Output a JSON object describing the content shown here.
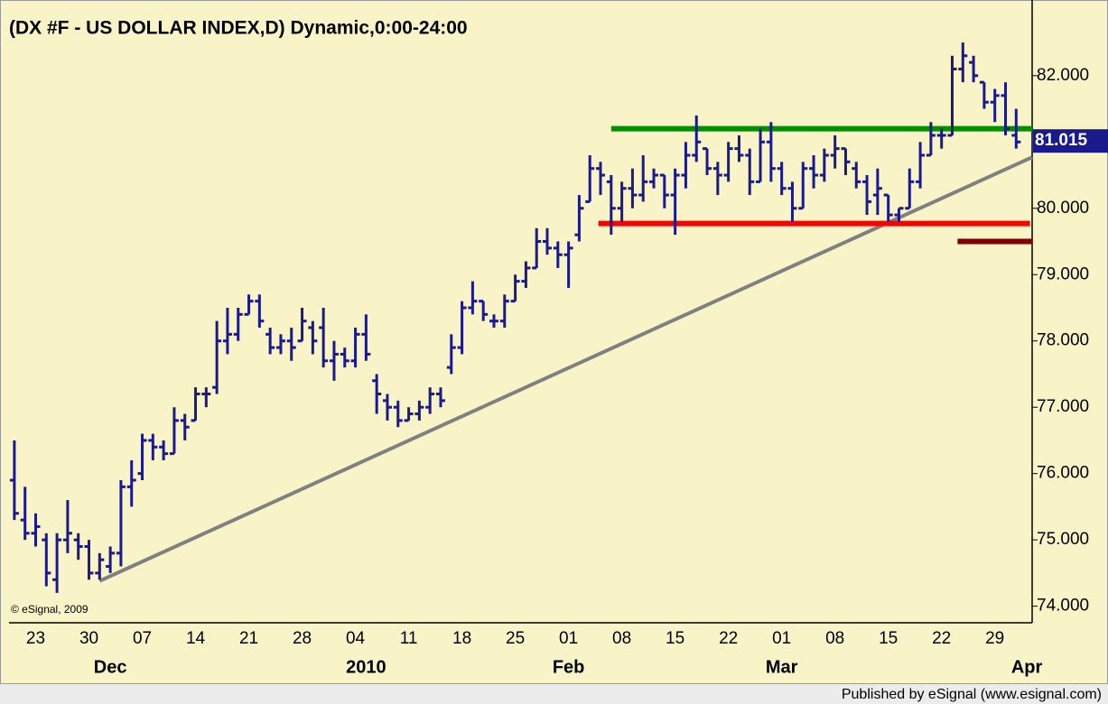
{
  "chart_data": {
    "type": "ohlc",
    "title": "(DX #F - US DOLLAR INDEX,D) Dynamic,0:00-24:00",
    "copyright": "© eSignal, 2009",
    "footer": "Published by eSignal (www.esignal.com)",
    "color": "#1a1a8c",
    "categories": [
      null,
      null,
      "23",
      null,
      null,
      null,
      null,
      "30",
      null,
      null,
      null,
      null,
      "07",
      null,
      null,
      null,
      null,
      "14",
      null,
      null,
      null,
      null,
      "21",
      null,
      null,
      null,
      null,
      "28",
      null,
      null,
      null,
      null,
      "04",
      null,
      null,
      null,
      null,
      "11",
      null,
      null,
      null,
      null,
      "18",
      null,
      null,
      null,
      null,
      "25",
      null,
      null,
      null,
      null,
      "01",
      null,
      null,
      null,
      null,
      "08",
      null,
      null,
      null,
      null,
      "15",
      null,
      null,
      null,
      null,
      "22",
      null,
      null,
      null,
      null,
      "01",
      null,
      null,
      null,
      null,
      "08",
      null,
      null,
      null,
      null,
      "15",
      null,
      null,
      null,
      null,
      "22",
      null,
      null,
      null,
      null,
      "29",
      null,
      null,
      null
    ],
    "month_categories": [
      null,
      null,
      null,
      null,
      null,
      null,
      null,
      null,
      null,
      "Dec",
      null,
      null,
      null,
      null,
      null,
      null,
      null,
      null,
      null,
      null,
      null,
      null,
      null,
      null,
      null,
      null,
      null,
      null,
      null,
      null,
      null,
      null,
      null,
      "2010",
      null,
      null,
      null,
      null,
      null,
      null,
      null,
      null,
      null,
      null,
      null,
      null,
      null,
      null,
      null,
      null,
      null,
      null,
      "Feb",
      null,
      null,
      null,
      null,
      null,
      null,
      null,
      null,
      null,
      null,
      null,
      null,
      null,
      null,
      null,
      null,
      null,
      null,
      null,
      "Mar",
      null,
      null,
      null,
      null,
      null,
      null,
      null,
      null,
      null,
      null,
      null,
      null,
      null,
      null,
      null,
      null,
      null,
      null,
      null,
      null,
      null,
      null,
      "Apr"
    ],
    "open": [
      75.9,
      75.3,
      75.1,
      75.0,
      74.4,
      75.0,
      75.0,
      74.9,
      74.5,
      74.6,
      74.8,
      75.8,
      76.0,
      76.5,
      76.4,
      76.3,
      76.8,
      76.8,
      77.2,
      77.3,
      78.0,
      78.1,
      78.4,
      78.6,
      78.1,
      77.9,
      78.0,
      78.0,
      78.2,
      78.2,
      77.7,
      77.8,
      77.7,
      78.1,
      77.4,
      77.1,
      77.0,
      76.8,
      76.9,
      77.0,
      77.2,
      77.6,
      77.9,
      78.5,
      78.6,
      78.3,
      78.3,
      78.6,
      78.9,
      79.1,
      79.5,
      79.4,
      79.3,
      79.6,
      80.1,
      80.6,
      80.4,
      80.0,
      80.3,
      80.2,
      80.4,
      80.5,
      80.2,
      80.5,
      80.8,
      80.9,
      80.6,
      80.5,
      80.9,
      80.8,
      80.4,
      81.0,
      80.6,
      80.3,
      80.0,
      80.6,
      80.5,
      80.8,
      80.9,
      80.6,
      80.4,
      80.2,
      80.2,
      79.9,
      80.0,
      80.4,
      80.8,
      81.1,
      81.1,
      82.1,
      82.2,
      81.9,
      81.6,
      81.7,
      81.1,
      null
    ],
    "high": [
      76.5,
      75.8,
      75.4,
      75.1,
      75.1,
      75.6,
      75.1,
      75.0,
      74.8,
      74.9,
      75.9,
      76.2,
      76.6,
      76.6,
      76.5,
      77.0,
      76.9,
      77.3,
      77.3,
      78.3,
      78.5,
      78.5,
      78.7,
      78.7,
      78.2,
      78.1,
      78.2,
      78.5,
      78.3,
      78.5,
      78.0,
      77.9,
      78.2,
      78.4,
      77.5,
      77.2,
      77.1,
      77.0,
      77.1,
      77.3,
      77.3,
      78.1,
      78.6,
      78.9,
      78.6,
      78.4,
      78.7,
      79.0,
      79.2,
      79.7,
      79.7,
      79.5,
      79.5,
      80.2,
      80.8,
      80.7,
      80.5,
      80.4,
      80.6,
      80.8,
      80.6,
      80.5,
      80.6,
      81.0,
      81.4,
      80.9,
      80.7,
      81.0,
      81.1,
      80.9,
      81.2,
      81.3,
      80.7,
      80.4,
      80.7,
      80.8,
      80.9,
      81.1,
      80.9,
      80.7,
      80.5,
      80.6,
      80.2,
      80.0,
      80.6,
      81.0,
      81.3,
      81.2,
      82.3,
      82.5,
      82.3,
      81.9,
      81.8,
      81.9,
      81.5,
      null
    ],
    "low": [
      75.3,
      75.0,
      74.9,
      74.3,
      74.2,
      74.8,
      74.7,
      74.4,
      74.4,
      74.5,
      74.6,
      75.5,
      75.9,
      76.2,
      76.2,
      76.3,
      76.5,
      76.8,
      77.0,
      77.2,
      77.8,
      78.0,
      78.4,
      78.2,
      77.8,
      77.8,
      77.7,
      78.0,
      77.8,
      77.6,
      77.4,
      77.6,
      77.6,
      77.7,
      76.9,
      76.8,
      76.7,
      76.8,
      76.8,
      76.9,
      77.0,
      77.5,
      77.8,
      78.4,
      78.3,
      78.2,
      78.2,
      78.6,
      78.8,
      79.1,
      79.3,
      79.1,
      78.8,
      79.5,
      80.1,
      80.2,
      79.6,
      79.8,
      80.0,
      80.1,
      80.3,
      80.0,
      79.6,
      80.3,
      80.7,
      80.5,
      80.2,
      80.4,
      80.7,
      80.2,
      80.4,
      80.4,
      80.2,
      79.8,
      80.0,
      80.3,
      80.4,
      80.6,
      80.5,
      80.3,
      79.9,
      79.9,
      79.8,
      79.8,
      80.0,
      80.3,
      80.8,
      80.9,
      81.1,
      81.9,
      81.9,
      81.5,
      81.3,
      81.1,
      80.9,
      null
    ],
    "close": [
      75.4,
      75.1,
      75.2,
      74.5,
      75.0,
      75.1,
      74.9,
      74.5,
      74.7,
      74.8,
      75.8,
      75.9,
      76.5,
      76.4,
      76.3,
      76.8,
      76.7,
      77.2,
      77.2,
      78.0,
      78.1,
      78.4,
      78.6,
      78.3,
      77.9,
      78.0,
      77.9,
      78.3,
      78.0,
      77.7,
      77.8,
      77.7,
      78.1,
      77.8,
      77.2,
      77.0,
      76.8,
      76.9,
      77.0,
      77.2,
      77.1,
      77.9,
      78.5,
      78.6,
      78.4,
      78.3,
      78.6,
      78.9,
      79.1,
      79.5,
      79.4,
      79.3,
      79.4,
      80.0,
      80.6,
      80.5,
      80.0,
      80.3,
      80.2,
      80.4,
      80.5,
      80.2,
      80.5,
      80.8,
      81.0,
      80.6,
      80.5,
      80.9,
      80.8,
      80.4,
      81.0,
      80.6,
      80.3,
      80.0,
      80.6,
      80.5,
      80.8,
      80.9,
      80.7,
      80.4,
      80.1,
      80.3,
      79.9,
      80.0,
      80.4,
      80.8,
      81.1,
      81.1,
      82.1,
      82.3,
      82.0,
      81.6,
      81.7,
      81.2,
      81.0,
      null
    ],
    "last_value": 81.015,
    "lines": [
      {
        "color": "#808080",
        "x0": 8.5,
        "y0": 74.38,
        "x1": 96,
        "y1": 80.77
      },
      {
        "color": "#009000",
        "x0": 56.5,
        "y0": 81.2,
        "x1": 96,
        "y1": 81.2
      },
      {
        "color": "#ff0000",
        "x0": 55.3,
        "y0": 79.77,
        "x1": 95.8,
        "y1": 79.77
      },
      {
        "color": "#800000",
        "x0": 89,
        "y0": 79.5,
        "x1": 96,
        "y1": 79.5
      }
    ],
    "ylim": [
      73.75,
      83.1
    ],
    "yticks": [
      {
        "value": 74,
        "label": "74.000"
      },
      {
        "value": 75,
        "label": "75.000"
      },
      {
        "value": 76,
        "label": "76.000"
      },
      {
        "value": 77,
        "label": "77.000"
      },
      {
        "value": 78,
        "label": "78.000"
      },
      {
        "value": 79,
        "label": "79.000"
      },
      {
        "value": 80,
        "label": "80.000"
      },
      {
        "value": 82,
        "label": "82.000"
      }
    ]
  }
}
